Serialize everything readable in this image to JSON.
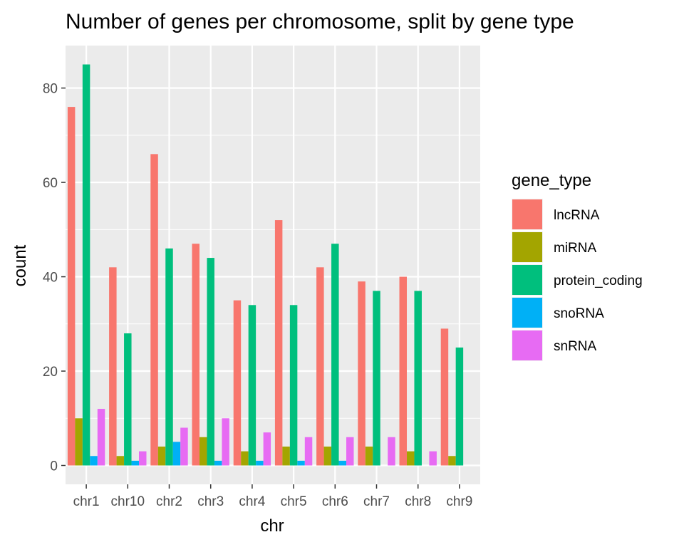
{
  "chart_data": {
    "type": "bar",
    "title": "Number of genes per chromosome, split by gene type",
    "xlabel": "chr",
    "ylabel": "count",
    "categories": [
      "chr1",
      "chr10",
      "chr2",
      "chr3",
      "chr4",
      "chr5",
      "chr6",
      "chr7",
      "chr8",
      "chr9"
    ],
    "ylim": [
      -4,
      89
    ],
    "yticks": [
      0,
      20,
      40,
      60,
      80
    ],
    "grid": true,
    "legend_title": "gene_type",
    "legend_position": "right",
    "series": [
      {
        "name": "lncRNA",
        "color": "#F8766D",
        "values": [
          76,
          42,
          66,
          47,
          35,
          52,
          42,
          39,
          40,
          29
        ]
      },
      {
        "name": "miRNA",
        "color": "#A3A500",
        "values": [
          10,
          2,
          4,
          6,
          3,
          4,
          4,
          4,
          3,
          2
        ]
      },
      {
        "name": "protein_coding",
        "color": "#00BF7D",
        "values": [
          85,
          28,
          46,
          44,
          34,
          34,
          47,
          37,
          37,
          25
        ]
      },
      {
        "name": "snoRNA",
        "color": "#00B0F6",
        "values": [
          2,
          1,
          5,
          1,
          1,
          1,
          1,
          null,
          null,
          null
        ]
      },
      {
        "name": "snRNA",
        "color": "#E76BF3",
        "values": [
          12,
          3,
          8,
          10,
          7,
          6,
          6,
          6,
          3,
          null
        ]
      }
    ]
  }
}
